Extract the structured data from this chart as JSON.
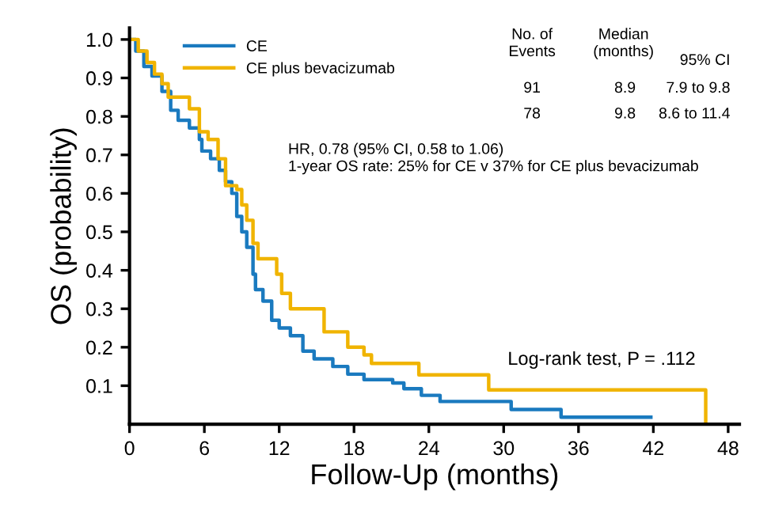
{
  "chart_data": {
    "type": "step",
    "xlabel": "Follow-Up (months)",
    "ylabel": "OS (probability)",
    "xlim": [
      0,
      48.9
    ],
    "ylim": [
      0,
      1.03
    ],
    "xticks": [
      0,
      6,
      12,
      18,
      24,
      30,
      36,
      42,
      48
    ],
    "yticks": [
      0.1,
      0.2,
      0.3,
      0.4,
      0.5,
      0.6,
      0.7,
      0.8,
      0.9,
      {
        "value": 1.0,
        "label": "1.0"
      }
    ],
    "grid": false,
    "legend": "top",
    "line_style": "solid",
    "marker": "none",
    "series": [
      {
        "name": "CE",
        "color": "#1a7abf",
        "x": [
          0,
          0.5,
          1.15,
          1.8,
          2.6,
          3.3,
          3.9,
          4.8,
          5.6,
          5.8,
          6.5,
          7.2,
          7.7,
          8.2,
          8.6,
          9.0,
          9.4,
          9.9,
          10.1,
          10.7,
          11.4,
          12.0,
          12.9,
          13.9,
          14.8,
          16.3,
          17.5,
          18.8,
          21.1,
          22.0,
          23.4,
          24.9,
          30.6,
          34.6,
          41.8
        ],
        "values": [
          1.0,
          0.97,
          0.93,
          0.905,
          0.865,
          0.816,
          0.79,
          0.77,
          0.74,
          0.71,
          0.69,
          0.66,
          0.63,
          0.6,
          0.54,
          0.5,
          0.46,
          0.39,
          0.35,
          0.32,
          0.27,
          0.25,
          0.23,
          0.19,
          0.17,
          0.15,
          0.13,
          0.116,
          0.107,
          0.092,
          0.075,
          0.059,
          0.038,
          0.018,
          0.018
        ]
      },
      {
        "name": "CE plus bevacizumab",
        "color": "#f0b400",
        "x": [
          0,
          0.7,
          1.4,
          2.0,
          2.6,
          3.1,
          4.8,
          5.6,
          6.3,
          7.1,
          7.7,
          8.6,
          9.0,
          9.4,
          9.9,
          10.3,
          11.8,
          12.2,
          12.9,
          15.6,
          17.5,
          18.8,
          19.4,
          23.2,
          28.8,
          46.2
        ],
        "values": [
          1.0,
          0.97,
          0.94,
          0.91,
          0.885,
          0.85,
          0.82,
          0.76,
          0.74,
          0.69,
          0.62,
          0.61,
          0.57,
          0.53,
          0.47,
          0.43,
          0.39,
          0.34,
          0.3,
          0.24,
          0.2,
          0.18,
          0.158,
          0.128,
          0.089,
          0.0
        ]
      }
    ],
    "annotations": [
      "No. of\nEvents",
      "Median\n(months)",
      "95% CI",
      "91",
      "8.9",
      "7.9 to 9.8",
      "78",
      "9.8",
      "8.6 to 11.4",
      "HR, 0.78 (95% CI, 0.58 to 1.06)\n1-year OS rate: 25% for CE v 37% for CE plus bevacizumab",
      "Log-rank test, P = .112"
    ]
  }
}
